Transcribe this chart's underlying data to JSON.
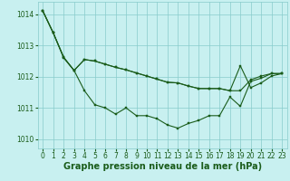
{
  "background_color": "#c8f0f0",
  "grid_color": "#88cccc",
  "line_color": "#1a5c1a",
  "marker_color": "#1a5c1a",
  "xlabel": "Graphe pression niveau de la mer (hPa)",
  "xlabel_fontsize": 7,
  "tick_fontsize": 5.5,
  "ylim": [
    1009.7,
    1014.4
  ],
  "xlim": [
    -0.5,
    23.5
  ],
  "yticks": [
    1010,
    1011,
    1012,
    1013,
    1014
  ],
  "xticks": [
    0,
    1,
    2,
    3,
    4,
    5,
    6,
    7,
    8,
    9,
    10,
    11,
    12,
    13,
    14,
    15,
    16,
    17,
    18,
    19,
    20,
    21,
    22,
    23
  ],
  "series1": [
    1014.1,
    1013.4,
    1012.6,
    1012.2,
    1011.55,
    1011.1,
    1011.0,
    1010.8,
    1011.0,
    1010.75,
    1010.75,
    1010.65,
    1010.45,
    1010.35,
    1010.5,
    1010.6,
    1010.75,
    1010.75,
    1011.35,
    1011.05,
    1011.85,
    1011.95,
    1012.1,
    1012.1
  ],
  "series2": [
    1014.1,
    1013.4,
    1012.62,
    1012.2,
    1012.55,
    1012.5,
    1012.4,
    1012.3,
    1012.22,
    1012.12,
    1012.02,
    1011.92,
    1011.82,
    1011.8,
    1011.7,
    1011.62,
    1011.62,
    1011.62,
    1011.55,
    1011.55,
    1011.9,
    1012.02,
    1012.1,
    1012.1
  ],
  "series3": [
    1014.1,
    1013.4,
    1012.62,
    1012.2,
    1012.55,
    1012.5,
    1012.4,
    1012.3,
    1012.22,
    1012.12,
    1012.02,
    1011.92,
    1011.82,
    1011.8,
    1011.7,
    1011.62,
    1011.62,
    1011.62,
    1011.55,
    1012.35,
    1011.65,
    1011.8,
    1012.02,
    1012.1
  ]
}
